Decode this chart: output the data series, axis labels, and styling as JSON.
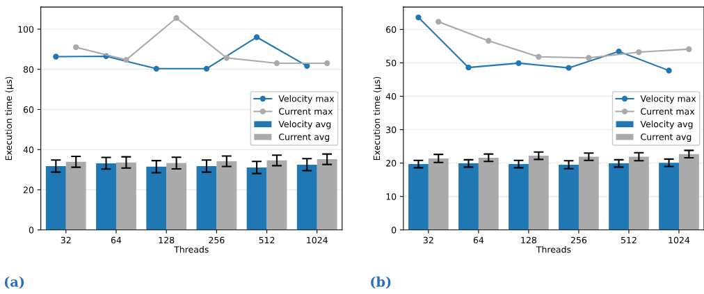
{
  "chart_data": [
    {
      "type": "bar",
      "xlabel": "Threads",
      "ylabel": "Execution time (µs)",
      "categories": [
        "32",
        "64",
        "128",
        "256",
        "512",
        "1024"
      ],
      "ylim": [
        0,
        111
      ],
      "yticks": [
        0,
        20,
        40,
        60,
        80,
        100
      ],
      "grid": "y",
      "legend": "right",
      "marker": "circle",
      "annotations": [
        "(a)"
      ],
      "series": [
        {
          "name": "Velocity max",
          "type": "line",
          "color": "#1f77b4",
          "values": [
            86.3,
            86.5,
            80.3,
            80.3,
            96.0,
            81.7
          ]
        },
        {
          "name": "Current max",
          "type": "line",
          "color": "#aaaaaa",
          "values": [
            91.0,
            84.7,
            105.5,
            85.7,
            83.0,
            83.0
          ]
        },
        {
          "name": "Velocity avg",
          "color": "#1f77b4",
          "values": [
            31.8,
            33.2,
            31.5,
            31.8,
            31.1,
            32.5
          ],
          "errors": [
            3.0,
            2.9,
            3.0,
            3.0,
            3.0,
            3.0
          ]
        },
        {
          "name": "Current avg",
          "color": "#aaaaaa",
          "values": [
            33.9,
            33.6,
            33.3,
            34.2,
            34.6,
            35.2
          ],
          "errors": [
            2.7,
            2.8,
            2.9,
            2.6,
            2.6,
            2.6
          ]
        }
      ]
    },
    {
      "type": "bar",
      "xlabel": "Threads",
      "ylabel": "Execution time (µs)",
      "categories": [
        "32",
        "64",
        "128",
        "256",
        "512",
        "1024"
      ],
      "ylim": [
        0,
        66.7
      ],
      "yticks": [
        0,
        10,
        20,
        30,
        40,
        50,
        60
      ],
      "grid": "y",
      "legend": "right",
      "marker": "circle",
      "annotations": [
        "(b)"
      ],
      "series": [
        {
          "name": "Velocity max",
          "type": "line",
          "color": "#1f77b4",
          "values": [
            63.6,
            48.6,
            49.9,
            48.5,
            53.4,
            47.7
          ]
        },
        {
          "name": "Current max",
          "type": "line",
          "color": "#aaaaaa",
          "values": [
            62.3,
            56.6,
            51.8,
            51.5,
            53.2,
            54.1
          ]
        },
        {
          "name": "Velocity avg",
          "color": "#1f77b4",
          "values": [
            19.7,
            19.9,
            19.7,
            19.5,
            19.9,
            20.1
          ],
          "errors": [
            1.1,
            1.1,
            1.1,
            1.2,
            1.1,
            1.1
          ]
        },
        {
          "name": "Current avg",
          "color": "#aaaaaa",
          "values": [
            21.4,
            21.6,
            22.2,
            21.9,
            21.9,
            22.7
          ],
          "errors": [
            1.2,
            1.1,
            1.1,
            1.1,
            1.2,
            1.1
          ]
        }
      ]
    }
  ]
}
